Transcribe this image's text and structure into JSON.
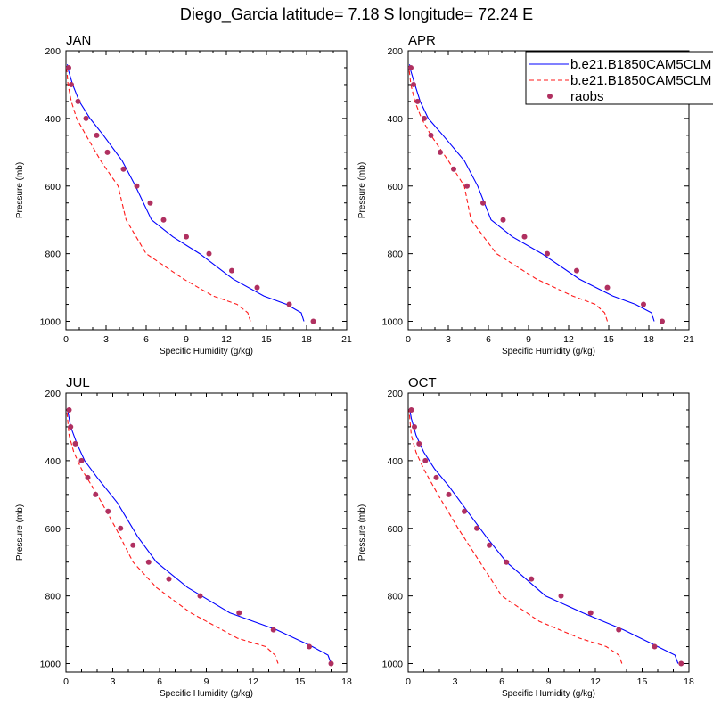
{
  "title": "Diego_Garcia  latitude= 7.18 S longitude= 72.24 E",
  "colors": {
    "model1": "#0000ff",
    "model2": "#ff1a1a",
    "obs": "#b03060"
  },
  "legend": {
    "entries": [
      {
        "label": "b.e21.B1850CAM5CLM",
        "style": "solid",
        "color": "#0000ff"
      },
      {
        "label": "b.e21.B1850CAM5CLM",
        "style": "dashed",
        "color": "#ff1a1a"
      },
      {
        "label": "raobs",
        "style": "marker",
        "color": "#b03060"
      }
    ]
  },
  "chart_data": [
    {
      "type": "line",
      "panel": "JAN",
      "title": "JAN",
      "xlabel": "Specific Humidity (g/kg)",
      "ylabel": "Pressure (mb)",
      "xlim": [
        0,
        21
      ],
      "xticks": [
        0,
        3,
        6,
        9,
        12,
        15,
        18,
        21
      ],
      "ylim": [
        1025,
        200
      ],
      "yticks": [
        200,
        400,
        600,
        800,
        1000
      ],
      "series": [
        {
          "name": "b.e21.B1850CAM5CLM",
          "style": "solid",
          "x": [
            17.8,
            17.6,
            16.5,
            14.8,
            12.5,
            10.0,
            8.0,
            6.4,
            5.2,
            4.2,
            2.8,
            1.8,
            1.0,
            0.5,
            0.2,
            0.1
          ],
          "y": [
            1000,
            975,
            950,
            925,
            875,
            800,
            750,
            700,
            600,
            525,
            450,
            400,
            350,
            300,
            260,
            240
          ]
        },
        {
          "name": "b.e21.B1850CAM5CLM",
          "style": "dashed",
          "x": [
            13.8,
            13.6,
            12.8,
            11.0,
            8.8,
            6.0,
            4.5,
            3.9,
            2.6,
            1.5,
            0.8,
            0.4,
            0.15,
            0.05
          ],
          "y": [
            1000,
            975,
            950,
            925,
            875,
            800,
            700,
            600,
            525,
            450,
            400,
            350,
            300,
            250
          ]
        },
        {
          "name": "raobs",
          "style": "marker",
          "x": [
            18.5,
            16.7,
            14.3,
            12.4,
            10.7,
            9.0,
            7.3,
            6.3,
            5.3,
            4.3,
            3.1,
            2.3,
            1.5,
            0.9,
            0.4,
            0.2
          ],
          "y": [
            1000,
            950,
            900,
            850,
            800,
            750,
            700,
            650,
            600,
            550,
            500,
            450,
            400,
            350,
            300,
            250
          ]
        }
      ]
    },
    {
      "type": "line",
      "panel": "APR",
      "title": "APR",
      "xlabel": "Specific Humidity (g/kg)",
      "ylabel": "Pressure (mb)",
      "xlim": [
        0,
        21
      ],
      "xticks": [
        0,
        3,
        6,
        9,
        12,
        15,
        18,
        21
      ],
      "ylim": [
        1025,
        200
      ],
      "yticks": [
        200,
        400,
        600,
        800,
        1000
      ],
      "series": [
        {
          "name": "b.e21.B1850CAM5CLM",
          "style": "solid",
          "x": [
            18.4,
            18.2,
            17.0,
            15.3,
            12.8,
            10.0,
            7.8,
            6.2,
            5.2,
            4.2,
            2.6,
            1.5,
            0.9,
            0.5,
            0.2,
            0.1
          ],
          "y": [
            1000,
            975,
            950,
            925,
            875,
            800,
            750,
            700,
            600,
            525,
            450,
            400,
            350,
            300,
            260,
            240
          ]
        },
        {
          "name": "b.e21.B1850CAM5CLM",
          "style": "dashed",
          "x": [
            14.9,
            14.7,
            14.0,
            12.3,
            9.6,
            6.6,
            4.7,
            4.2,
            3.0,
            1.7,
            1.0,
            0.5,
            0.2,
            0.05
          ],
          "y": [
            1000,
            975,
            950,
            925,
            875,
            800,
            700,
            600,
            525,
            450,
            400,
            350,
            300,
            250
          ]
        },
        {
          "name": "raobs",
          "style": "marker",
          "x": [
            19.0,
            17.6,
            14.9,
            12.6,
            10.4,
            8.7,
            7.1,
            5.6,
            4.4,
            3.4,
            2.4,
            1.7,
            1.2,
            0.7,
            0.4,
            0.2
          ],
          "y": [
            1000,
            950,
            900,
            850,
            800,
            750,
            700,
            650,
            600,
            550,
            500,
            450,
            400,
            350,
            300,
            250
          ]
        }
      ]
    },
    {
      "type": "line",
      "panel": "JUL",
      "title": "JUL",
      "xlabel": "Specific Humidity (g/kg)",
      "ylabel": "Pressure (mb)",
      "xlim": [
        0,
        18
      ],
      "xticks": [
        0,
        3,
        6,
        9,
        12,
        15,
        18
      ],
      "ylim": [
        1025,
        200
      ],
      "yticks": [
        200,
        400,
        600,
        800,
        1000
      ],
      "series": [
        {
          "name": "b.e21.B1850CAM5CLM",
          "style": "solid",
          "x": [
            17.0,
            16.8,
            15.8,
            13.5,
            10.5,
            7.8,
            5.8,
            4.6,
            3.3,
            2.0,
            1.2,
            0.7,
            0.3,
            0.1
          ],
          "y": [
            1000,
            975,
            950,
            900,
            850,
            775,
            700,
            625,
            525,
            450,
            400,
            350,
            300,
            250
          ]
        },
        {
          "name": "b.e21.B1850CAM5CLM",
          "style": "dashed",
          "x": [
            13.6,
            13.4,
            12.8,
            11.0,
            8.0,
            5.8,
            4.3,
            3.2,
            2.0,
            1.0,
            0.5,
            0.2,
            0.05
          ],
          "y": [
            1000,
            975,
            950,
            925,
            850,
            775,
            700,
            600,
            500,
            425,
            375,
            325,
            250
          ]
        },
        {
          "name": "raobs",
          "style": "marker",
          "x": [
            17.0,
            15.6,
            13.3,
            11.1,
            8.6,
            6.6,
            5.3,
            4.3,
            3.5,
            2.7,
            1.9,
            1.4,
            1.0,
            0.6,
            0.3,
            0.2
          ],
          "y": [
            1000,
            950,
            900,
            850,
            800,
            750,
            700,
            650,
            600,
            550,
            500,
            450,
            400,
            350,
            300,
            250
          ]
        }
      ]
    },
    {
      "type": "line",
      "panel": "OCT",
      "title": "OCT",
      "xlabel": "Specific Humidity (g/kg)",
      "ylabel": "Pressure (mb)",
      "xlim": [
        0,
        18
      ],
      "xticks": [
        0,
        3,
        6,
        9,
        12,
        15,
        18
      ],
      "ylim": [
        1025,
        200
      ],
      "yticks": [
        200,
        400,
        600,
        800,
        1000
      ],
      "series": [
        {
          "name": "b.e21.B1850CAM5CLM",
          "style": "solid",
          "x": [
            17.3,
            17.1,
            16.0,
            13.8,
            11.2,
            8.8,
            6.3,
            5.0,
            3.8,
            2.6,
            1.7,
            1.0,
            0.5,
            0.2,
            0.1
          ],
          "y": [
            1000,
            975,
            950,
            900,
            850,
            800,
            700,
            625,
            550,
            475,
            425,
            375,
            325,
            275,
            250
          ]
        },
        {
          "name": "b.e21.B1850CAM5CLM",
          "style": "dashed",
          "x": [
            13.7,
            13.5,
            12.7,
            11.0,
            8.4,
            6.0,
            4.6,
            3.2,
            1.9,
            1.0,
            0.5,
            0.2,
            0.05
          ],
          "y": [
            1000,
            975,
            950,
            925,
            875,
            800,
            700,
            600,
            500,
            425,
            375,
            325,
            250
          ]
        },
        {
          "name": "raobs",
          "style": "marker",
          "x": [
            17.5,
            15.8,
            13.5,
            11.7,
            9.8,
            7.9,
            6.3,
            5.2,
            4.4,
            3.6,
            2.6,
            1.8,
            1.1,
            0.7,
            0.4,
            0.2
          ],
          "y": [
            1000,
            950,
            900,
            850,
            800,
            750,
            700,
            650,
            600,
            550,
            500,
            450,
            400,
            350,
            300,
            250
          ]
        }
      ]
    }
  ]
}
